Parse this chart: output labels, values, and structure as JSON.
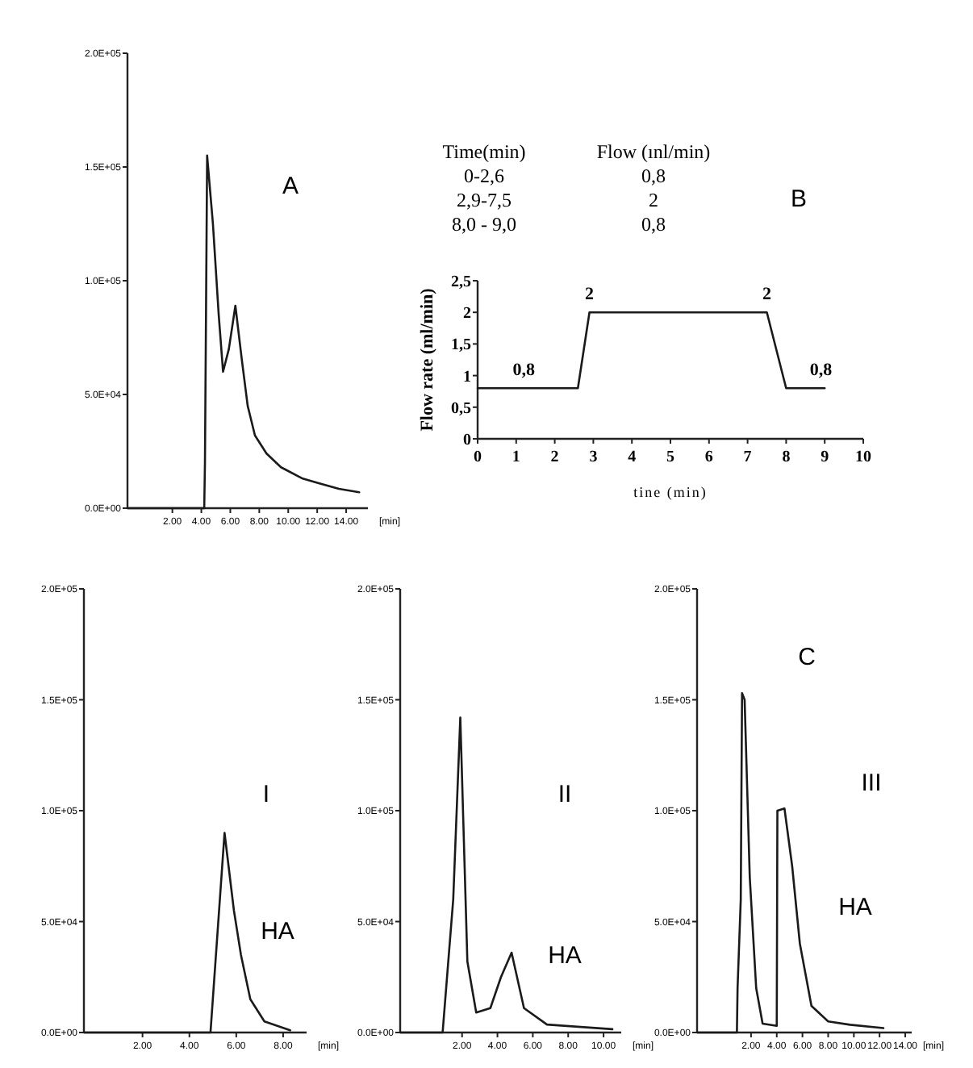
{
  "chart_data": [
    {
      "type": "line",
      "title": "A",
      "xlabel": "[min]",
      "color": "#1a1a1a",
      "x": [
        -1.1,
        4.2,
        4.25,
        4.4,
        4.8,
        5.2,
        5.5,
        5.9,
        6.35,
        6.8,
        7.2,
        7.7,
        8.5,
        9.5,
        11,
        12.1,
        13.5,
        14.9
      ],
      "values": [
        0,
        0,
        20000,
        155000,
        125000,
        85000,
        60000,
        70000,
        89000,
        65000,
        45000,
        32000,
        24000,
        18000,
        13000,
        11000,
        8500,
        7000
      ],
      "xlim": [
        -1.1,
        15.5
      ],
      "ylim": [
        0,
        200000
      ],
      "xticks": [
        {
          "value": 2,
          "label": "2.00"
        },
        {
          "value": 4,
          "label": "4.00"
        },
        {
          "value": 6,
          "label": "6.00"
        },
        {
          "value": 8,
          "label": "8.00"
        },
        {
          "value": 10,
          "label": "10.00"
        },
        {
          "value": 12,
          "label": "12.00"
        },
        {
          "value": 14,
          "label": "14.00"
        }
      ],
      "yticks": [
        {
          "value": 0,
          "label": "0.0E+00"
        },
        {
          "value": 50000,
          "label": "5.0E+04"
        },
        {
          "value": 100000,
          "label": "1.0E+05"
        },
        {
          "value": 150000,
          "label": "1.5E+05"
        },
        {
          "value": 200000,
          "label": "2.0E+05"
        }
      ]
    },
    {
      "type": "line",
      "title": "B",
      "xlabel": "tine (min)",
      "ylabel": "Flow rate (ml/min)",
      "color": "#1a1a1a",
      "x": [
        0,
        2.6,
        2.9,
        7.5,
        8.0,
        9.0
      ],
      "values": [
        0.8,
        0.8,
        2,
        2,
        0.8,
        0.8
      ],
      "xlim": [
        0,
        10
      ],
      "ylim": [
        0,
        2.5
      ],
      "xticks": [
        0,
        1,
        2,
        3,
        4,
        5,
        6,
        7,
        8,
        9,
        10
      ],
      "yticks": [
        0,
        {
          "value": 0.5,
          "label": "0,5"
        },
        1,
        {
          "value": 1.5,
          "label": "1,5"
        },
        2,
        {
          "value": 2.5,
          "label": "2,5"
        }
      ],
      "annotations": [
        "Time(min)",
        "Flow (ınl/min)",
        "0-2,6",
        "0,8",
        "2,9-7,5",
        "2",
        "8,0 - 9,0",
        "0,8",
        {
          "text": "0,8",
          "x": 1.2,
          "y": 0.8
        },
        {
          "text": "2",
          "x": 2.9,
          "y": 2
        },
        {
          "text": "2",
          "x": 7.5,
          "y": 2
        },
        {
          "text": "0,8",
          "x": 8.9,
          "y": 0.8
        }
      ]
    },
    {
      "type": "line",
      "title": "I",
      "xlabel": "[min]",
      "color": "#1a1a1a",
      "x": [
        -0.5,
        4.9,
        5.5,
        5.9,
        6.2,
        6.6,
        7.2,
        8.3
      ],
      "values": [
        0,
        0,
        90000,
        55000,
        35000,
        15000,
        5000,
        1000
      ],
      "xlim": [
        -0.5,
        9
      ],
      "ylim": [
        0,
        200000
      ],
      "xticks": [
        {
          "value": 2,
          "label": "2.00"
        },
        {
          "value": 4,
          "label": "4.00"
        },
        {
          "value": 6,
          "label": "6.00"
        },
        {
          "value": 8,
          "label": "8.00"
        }
      ],
      "yticks": [
        {
          "value": 0,
          "label": "0.0E+00"
        },
        {
          "value": 50000,
          "label": "5.0E+04"
        },
        {
          "value": 100000,
          "label": "1.0E+05"
        },
        {
          "value": 150000,
          "label": "1.5E+05"
        },
        {
          "value": 200000,
          "label": "2.0E+05"
        }
      ],
      "annotations": [
        "HA"
      ]
    },
    {
      "type": "line",
      "title": "II",
      "xlabel": "[min]",
      "color": "#1a1a1a",
      "x": [
        -1.5,
        0.9,
        1.5,
        1.9,
        2.3,
        2.8,
        3.6,
        4.2,
        4.8,
        5.5,
        6.8,
        10.5
      ],
      "values": [
        0,
        0,
        60000,
        142000,
        32000,
        9000,
        11000,
        25000,
        36000,
        11000,
        3600,
        1500
      ],
      "xlim": [
        -1.5,
        11
      ],
      "ylim": [
        0,
        200000
      ],
      "xticks": [
        {
          "value": 2,
          "label": "2.00"
        },
        {
          "value": 4,
          "label": "4.00"
        },
        {
          "value": 6,
          "label": "6.00"
        },
        {
          "value": 8,
          "label": "8.00"
        },
        {
          "value": 10,
          "label": "10.00"
        }
      ],
      "yticks": [
        {
          "value": 0,
          "label": "0.0E+00"
        },
        {
          "value": 50000,
          "label": "5.0E+04"
        },
        {
          "value": 100000,
          "label": "1.0E+05"
        },
        {
          "value": 150000,
          "label": "1.5E+05"
        },
        {
          "value": 200000,
          "label": "2.0E+05"
        }
      ],
      "annotations": [
        "HA"
      ]
    },
    {
      "type": "line",
      "title": "III",
      "xlabel": "[min]",
      "color": "#1a1a1a",
      "x": [
        -2.2,
        0.9,
        0.95,
        1.2,
        1.3,
        1.5,
        1.9,
        2.4,
        2.9,
        4.0,
        4.05,
        4.6,
        5.2,
        5.8,
        6.7,
        8,
        9.7,
        12.3
      ],
      "values": [
        0,
        0,
        20000,
        60000,
        153000,
        150000,
        70000,
        20000,
        4000,
        3000,
        100000,
        101000,
        75000,
        40000,
        12000,
        5000,
        3500,
        2000
      ],
      "xlim": [
        -2.2,
        14.5
      ],
      "ylim": [
        0,
        200000
      ],
      "xticks": [
        {
          "value": 2,
          "label": "2.00"
        },
        {
          "value": 4,
          "label": "4.00"
        },
        {
          "value": 6,
          "label": "6.00"
        },
        {
          "value": 8,
          "label": "8.00"
        },
        {
          "value": 10,
          "label": "10.00"
        },
        {
          "value": 12,
          "label": "12.00"
        },
        {
          "value": 14,
          "label": "14.00"
        }
      ],
      "yticks": [
        {
          "value": 0,
          "label": "0.0E+00"
        },
        {
          "value": 50000,
          "label": "5.0E+04"
        },
        {
          "value": 100000,
          "label": "1.0E+05"
        },
        {
          "value": 150000,
          "label": "1.5E+05"
        },
        {
          "value": 200000,
          "label": "2.0E+05"
        }
      ],
      "annotations": [
        "C",
        "HA"
      ]
    }
  ]
}
